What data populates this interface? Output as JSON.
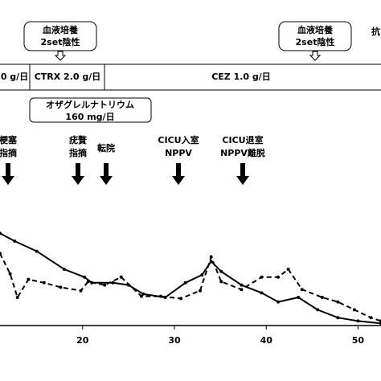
{
  "chart_data": {
    "type": "line",
    "xlim": [
      11,
      52.5
    ],
    "ylim": [
      0,
      100
    ],
    "xticks": [
      20,
      30,
      40,
      50
    ],
    "series": [
      {
        "color": "#000000",
        "dash": false,
        "x": [
          11,
          12.6,
          15,
          18,
          20.2,
          21,
          23.3,
          25,
          26.6,
          29,
          31.2,
          33,
          34,
          35.1,
          37.3,
          39.5,
          41.3,
          43.5,
          45.6,
          47.8,
          50,
          52.5
        ],
        "values": [
          82,
          75,
          66,
          50,
          43,
          38,
          38,
          36,
          28,
          25,
          38,
          45,
          57,
          48,
          36,
          29,
          21,
          25,
          14,
          7,
          4,
          2
        ]
      },
      {
        "color": "#000000",
        "dash": true,
        "x": [
          11,
          12.1,
          12.9,
          14.1,
          15.8,
          17.6,
          19.8,
          20.6,
          22.4,
          24.2,
          26.4,
          28.5,
          30.7,
          32.8,
          34,
          35.1,
          37.3,
          39.5,
          41.3,
          42.4,
          43.9,
          46.1,
          47.8,
          49.6,
          51.4,
          52.5
        ],
        "values": [
          64,
          46,
          25,
          41,
          38,
          34,
          31,
          39,
          36,
          43,
          26,
          26,
          24,
          31,
          61,
          39,
          32,
          43,
          43,
          50,
          32,
          25,
          21,
          14,
          7,
          4
        ]
      }
    ],
    "cultures": [
      [
        "血液培養",
        "2set陰性"
      ],
      [
        "血液培養",
        "2set陰性"
      ]
    ],
    "cut_label": "抗",
    "treatments": [
      "0 g/日",
      "CTRX 2.0 g/日",
      "CEZ 1.0 g/日"
    ],
    "drug_box": [
      "オザグレルナトリウム",
      "160 mg/日"
    ],
    "events": [
      [
        "梗塞",
        "指摘"
      ],
      [
        "疣贅",
        "指摘"
      ],
      [
        "転院"
      ],
      [
        "CICU入室",
        "NPPV"
      ],
      [
        "CICU退室",
        "NPPV離脱"
      ]
    ]
  }
}
